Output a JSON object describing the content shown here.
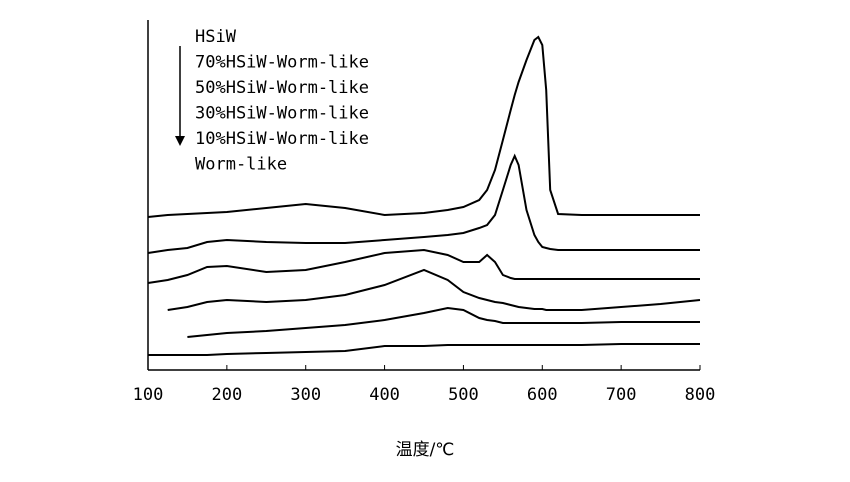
{
  "chart_data": {
    "type": "line",
    "x_label": "温度/℃",
    "x": [
      100,
      125,
      150,
      175,
      200,
      250,
      300,
      350,
      400,
      450,
      480,
      500,
      520,
      530,
      540,
      550,
      560,
      565,
      570,
      580,
      590,
      595,
      600,
      605,
      610,
      620,
      650,
      700,
      750,
      800
    ],
    "xlim": [
      100,
      800
    ],
    "xticks": [
      100,
      200,
      300,
      400,
      500,
      600,
      700,
      800
    ],
    "ylim": [
      0,
      350
    ],
    "series": [
      {
        "name": "HSiW",
        "color": "#000000",
        "values": [
          153,
          155,
          156,
          157,
          158,
          162,
          166,
          162,
          155,
          157,
          160,
          163,
          170,
          180,
          200,
          230,
          260,
          275,
          288,
          310,
          330,
          333,
          325,
          280,
          180,
          156,
          155,
          155,
          155,
          155
        ]
      },
      {
        "name": "70%HSiW-Worm-like",
        "color": "#000000",
        "values": [
          117,
          120,
          122,
          128,
          130,
          128,
          127,
          127,
          130,
          133,
          135,
          137,
          142,
          145,
          155,
          180,
          205,
          214,
          205,
          160,
          135,
          128,
          123,
          122,
          121,
          120,
          120,
          120,
          120,
          120
        ]
      },
      {
        "name": "50%HSiW-Worm-like",
        "color": "#000000",
        "values": [
          87,
          90,
          95,
          103,
          104,
          98,
          100,
          108,
          117,
          120,
          115,
          108,
          108,
          115,
          108,
          95,
          92,
          91,
          91,
          91,
          91,
          91,
          91,
          91,
          91,
          91,
          91,
          91,
          91,
          91
        ]
      },
      {
        "name": "30%HSiW-Worm-like",
        "color": "#000000",
        "values": [
          null,
          60,
          63,
          68,
          70,
          68,
          70,
          75,
          85,
          100,
          90,
          78,
          72,
          70,
          68,
          67,
          65,
          64,
          63,
          62,
          61,
          61,
          61,
          60,
          60,
          60,
          60,
          63,
          66,
          70
        ]
      },
      {
        "name": "10%HSiW-Worm-like",
        "color": "#000000",
        "values": [
          null,
          null,
          33,
          35,
          37,
          39,
          42,
          45,
          50,
          57,
          62,
          60,
          52,
          50,
          49,
          47,
          47,
          47,
          47,
          47,
          47,
          47,
          47,
          47,
          47,
          47,
          47,
          48,
          48,
          48
        ]
      },
      {
        "name": "Worm-like",
        "color": "#000000",
        "values": [
          15,
          15,
          15,
          15,
          16,
          17,
          18,
          19,
          24,
          24,
          25,
          25,
          25,
          25,
          25,
          25,
          25,
          25,
          25,
          25,
          25,
          25,
          25,
          25,
          25,
          25,
          25,
          26,
          26,
          26
        ]
      }
    ]
  }
}
